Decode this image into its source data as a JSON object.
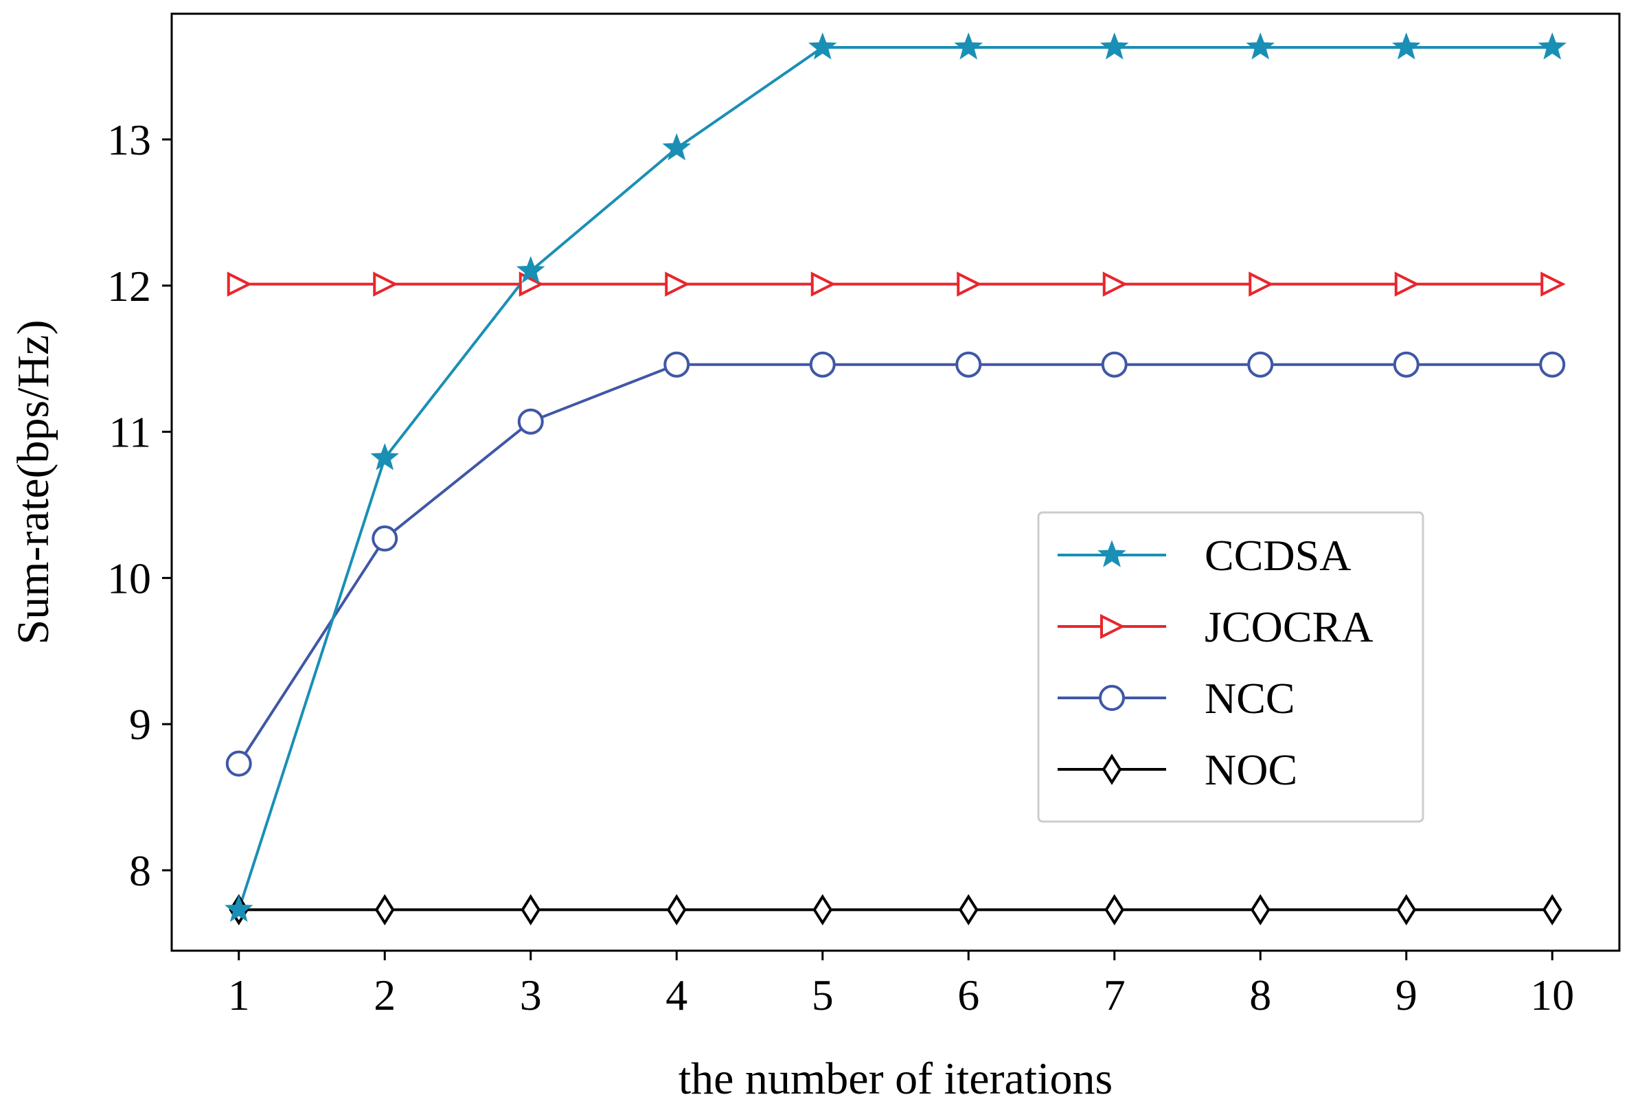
{
  "chart_data": {
    "type": "line",
    "title": "",
    "xlabel": "the number of iterations",
    "ylabel": "Sum-rate(bps/Hz)",
    "x": [
      1,
      2,
      3,
      4,
      5,
      6,
      7,
      8,
      9,
      10
    ],
    "xticks": [
      "1",
      "2",
      "3",
      "4",
      "5",
      "6",
      "7",
      "8",
      "9",
      "10"
    ],
    "yticks": [
      "8",
      "9",
      "10",
      "11",
      "12",
      "13"
    ],
    "xlim": [
      0.54,
      10.46
    ],
    "ylim": [
      7.45,
      13.86
    ],
    "grid": false,
    "legend_position": "center-right",
    "series": [
      {
        "name": "CCDSA",
        "color": "#1a8fb5",
        "marker": "star",
        "values": [
          7.73,
          10.82,
          12.1,
          12.94,
          13.63,
          13.63,
          13.63,
          13.63,
          13.63,
          13.63
        ]
      },
      {
        "name": "JCOCRA",
        "color": "#e8262d",
        "marker": "triangle-right",
        "values": [
          12.01,
          12.01,
          12.01,
          12.01,
          12.01,
          12.01,
          12.01,
          12.01,
          12.01,
          12.01
        ]
      },
      {
        "name": "NCC",
        "color": "#3f57a6",
        "marker": "circle",
        "values": [
          8.73,
          10.27,
          11.07,
          11.46,
          11.46,
          11.46,
          11.46,
          11.46,
          11.46,
          11.46
        ]
      },
      {
        "name": "NOC",
        "color": "#000000",
        "marker": "diamond",
        "values": [
          7.73,
          7.73,
          7.73,
          7.73,
          7.73,
          7.73,
          7.73,
          7.73,
          7.73,
          7.73
        ]
      }
    ]
  }
}
